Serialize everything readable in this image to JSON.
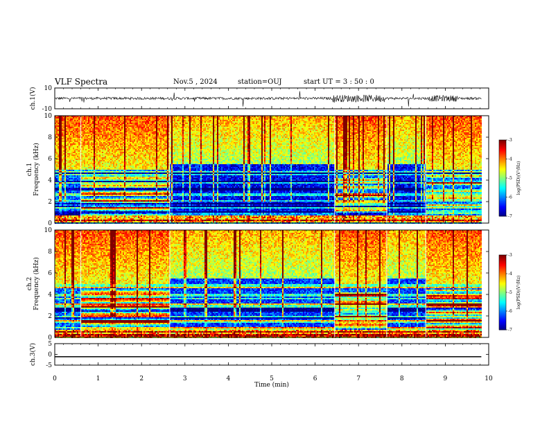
{
  "header": {
    "title": "VLF Spectra",
    "date": "Nov.5 , 2024",
    "station": "station=OUJ",
    "start": "start UT = 3 : 50 : 0"
  },
  "chart_data": [
    {
      "type": "line",
      "panel": "ch1-waveform",
      "ylabel": "ch.1(V)",
      "ylim": [
        -10,
        10
      ],
      "yticks": [
        "10",
        "-10"
      ],
      "xlim": [
        0,
        10
      ],
      "data_x_range": [
        0,
        9.83
      ],
      "description_values": "noisy broadband waveform, amplitude mostly within ±3 V, bursts near 6.5–7.5 min and 8.7–9.2 min"
    },
    {
      "type": "heatmap",
      "panel": "ch1-spectrogram",
      "ylabel": "ch.1\nFrequency (kHz)",
      "ylim": [
        0,
        10
      ],
      "yticks": [
        "0",
        "2",
        "4",
        "6",
        "8",
        "10"
      ],
      "xlim": [
        0,
        10
      ],
      "data_x_range": [
        0,
        9.83
      ],
      "colorbar": {
        "label": "log(PSD)(V²/Hz)",
        "range": [
          -7,
          -3
        ],
        "ticks": [
          "-3",
          "-4",
          "-5",
          "-6",
          "-7"
        ]
      },
      "segments": [
        0,
        0.6,
        2.65,
        6.45,
        7.65,
        8.55,
        9.83
      ]
    },
    {
      "type": "heatmap",
      "panel": "ch2-spectrogram",
      "ylabel": "ch.2\nFrequency (kHz)",
      "ylim": [
        0,
        10
      ],
      "yticks": [
        "0",
        "2",
        "4",
        "6",
        "8",
        "10"
      ],
      "xlim": [
        0,
        10
      ],
      "data_x_range": [
        0,
        9.83
      ],
      "colorbar": {
        "label": "log(PSD)(V²/Hz)",
        "range": [
          -7,
          -3
        ],
        "ticks": [
          "-3",
          "-4",
          "-5",
          "-6",
          "-7"
        ]
      },
      "segments": [
        0,
        0.6,
        2.65,
        6.45,
        7.65,
        8.55,
        9.83
      ]
    },
    {
      "type": "line",
      "panel": "ch3-waveform",
      "ylabel": "ch.3(V)",
      "ylim": [
        -5,
        5
      ],
      "yticks": [
        "5",
        "0",
        "-5"
      ],
      "xlim": [
        0,
        10
      ],
      "x": [
        0,
        9.83
      ],
      "y": [
        -1.1,
        -1.1
      ]
    }
  ],
  "xaxis": {
    "label": "Time (min)",
    "ticks": [
      "0",
      "1",
      "2",
      "3",
      "4",
      "5",
      "6",
      "7",
      "8",
      "9",
      "10"
    ]
  },
  "colors": {
    "jet": [
      "#00007f",
      "#0000ff",
      "#007fff",
      "#00ffff",
      "#7fff7f",
      "#ffff00",
      "#ff7f00",
      "#ff0000",
      "#7f0000"
    ]
  }
}
